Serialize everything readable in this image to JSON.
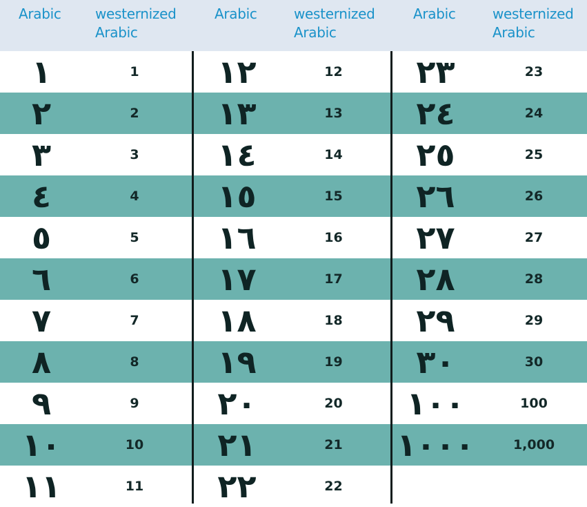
{
  "header": {
    "col1_arabic": "Arabic",
    "col1_western_1": "westernized",
    "col1_western_2": "Arabic",
    "col2_arabic": "Arabic",
    "col2_western_1": "westernized",
    "col2_western_2": "Arabic",
    "col3_arabic": "Arabic",
    "col3_western_1": "westernized",
    "col3_western_2": "Arabic"
  },
  "colors": {
    "header_bg": "#dfe7f1",
    "header_text": "#1a92c9",
    "stripe": "#6cb2ae",
    "divider": "#101c1c"
  },
  "columns": [
    [
      {
        "arabic": "١",
        "western": "1"
      },
      {
        "arabic": "٢",
        "western": "2"
      },
      {
        "arabic": "٣",
        "western": "3"
      },
      {
        "arabic": "٤",
        "western": "4"
      },
      {
        "arabic": "٥",
        "western": "5"
      },
      {
        "arabic": "٦",
        "western": "6"
      },
      {
        "arabic": "٧",
        "western": "7"
      },
      {
        "arabic": "٨",
        "western": "8"
      },
      {
        "arabic": "٩",
        "western": "9"
      },
      {
        "arabic": "١٠",
        "western": "10"
      },
      {
        "arabic": "١١",
        "western": "11"
      }
    ],
    [
      {
        "arabic": "١٢",
        "western": "12"
      },
      {
        "arabic": "١٣",
        "western": "13"
      },
      {
        "arabic": "١٤",
        "western": "14"
      },
      {
        "arabic": "١٥",
        "western": "15"
      },
      {
        "arabic": "١٦",
        "western": "16"
      },
      {
        "arabic": "١٧",
        "western": "17"
      },
      {
        "arabic": "١٨",
        "western": "18"
      },
      {
        "arabic": "١٩",
        "western": "19"
      },
      {
        "arabic": "٢٠",
        "western": "20"
      },
      {
        "arabic": "٢١",
        "western": "21"
      },
      {
        "arabic": "٢٢",
        "western": "22"
      }
    ],
    [
      {
        "arabic": "٢٣",
        "western": "23"
      },
      {
        "arabic": "٢٤",
        "western": "24"
      },
      {
        "arabic": "٢٥",
        "western": "25"
      },
      {
        "arabic": "٢٦",
        "western": "26"
      },
      {
        "arabic": "٢٧",
        "western": "27"
      },
      {
        "arabic": "٢٨",
        "western": "28"
      },
      {
        "arabic": "٢٩",
        "western": "29"
      },
      {
        "arabic": "٣٠",
        "western": "30"
      },
      {
        "arabic": "١٠٠",
        "western": "100"
      },
      {
        "arabic": "١٠٠٠",
        "western": "1,000"
      }
    ]
  ]
}
